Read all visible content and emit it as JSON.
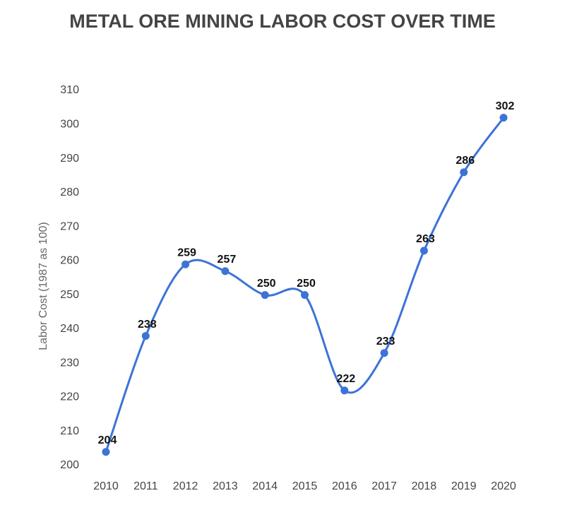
{
  "chart_data": {
    "type": "line",
    "title": "METAL ORE MINING LABOR COST OVER TIME",
    "y_label": "Labor Cost (1987 as 100)",
    "categories": [
      "2010",
      "2011",
      "2012",
      "2013",
      "2014",
      "2015",
      "2016",
      "2017",
      "2018",
      "2019",
      "2020"
    ],
    "series": [
      {
        "name": "Labor Cost",
        "color": "#3c73d6",
        "values": [
          204,
          238,
          259,
          257,
          250,
          250,
          222,
          233,
          263,
          286,
          302
        ]
      }
    ],
    "ylim": [
      200,
      310
    ],
    "yticks": [
      200,
      210,
      220,
      230,
      240,
      250,
      260,
      270,
      280,
      290,
      300,
      310
    ],
    "grid": false
  }
}
